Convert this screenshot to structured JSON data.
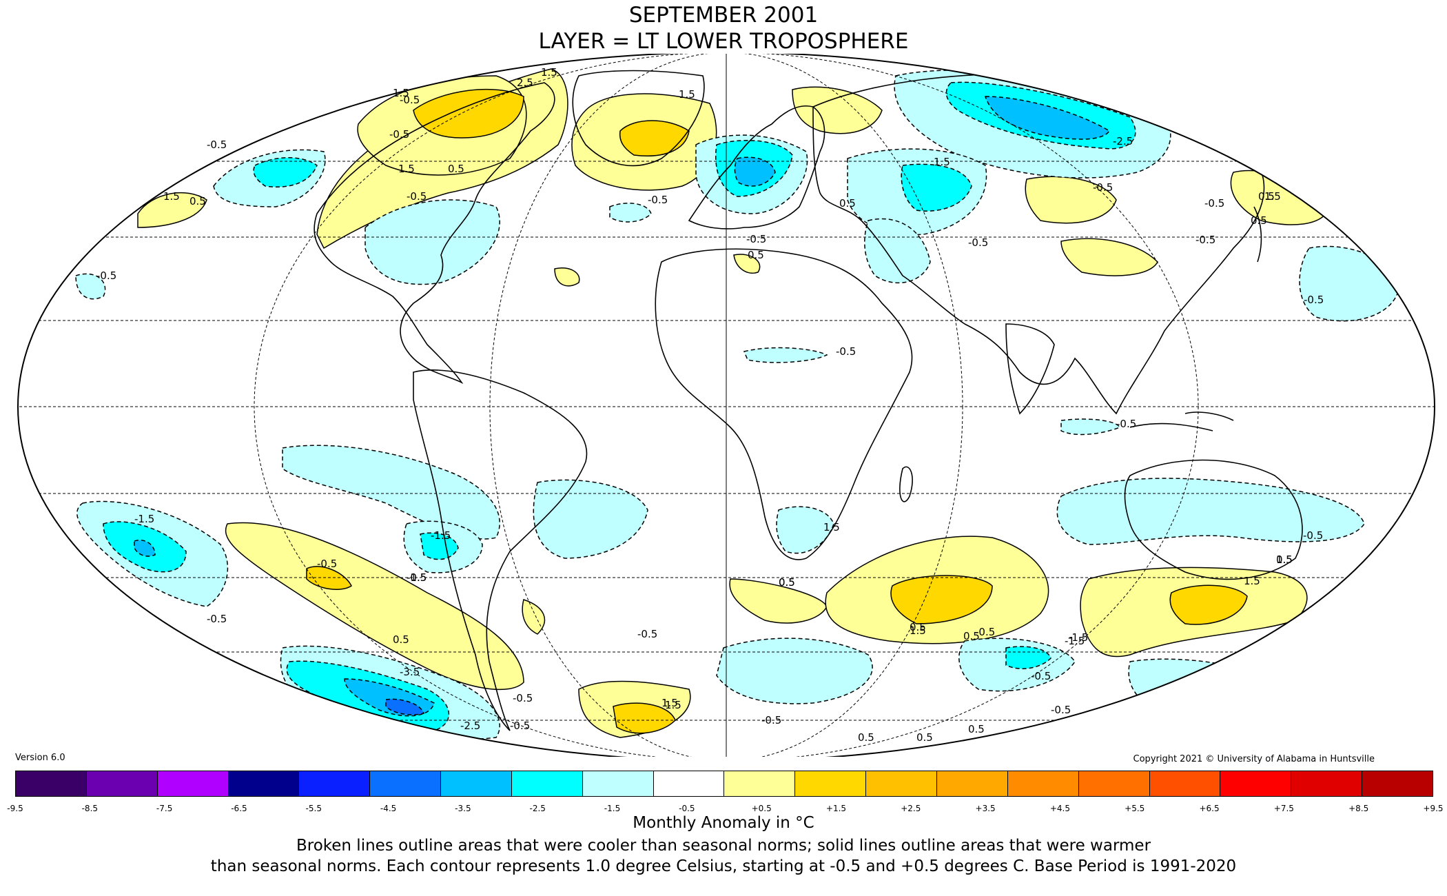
{
  "header": {
    "title_line1": "SEPTEMBER 2001",
    "title_line2": "LAYER = LT LOWER TROPOSPHERE"
  },
  "version": "Version 6.0",
  "copyright": "Copyright 2021 © University of Alabama in Huntsville",
  "colorbar": {
    "label": "Monthly Anomaly in °C",
    "ticks": [
      "-9.5",
      "-8.5",
      "-7.5",
      "-6.5",
      "-5.5",
      "-4.5",
      "-3.5",
      "-2.5",
      "-1.5",
      "-0.5",
      "+0.5",
      "+1.5",
      "+2.5",
      "+3.5",
      "+4.5",
      "+5.5",
      "+6.5",
      "+7.5",
      "+8.5",
      "+9.5"
    ],
    "colors": [
      "#3a0068",
      "#6a00b0",
      "#b000ff",
      "#00008c",
      "#0a20ff",
      "#0a70ff",
      "#00c0ff",
      "#00ffff",
      "#c0ffff",
      "#ffffff",
      "#ffff98",
      "#ffd800",
      "#ffc000",
      "#ffa800",
      "#ff8c00",
      "#ff7000",
      "#ff5000",
      "#ff0000",
      "#e00000",
      "#b80000"
    ]
  },
  "notes": {
    "line1": "Broken lines outline areas that were cooler than seasonal norms; solid lines outline areas that were warmer",
    "line2": "than seasonal norms. Each contour represents 1.0 degree Celsius, starting at -0.5 and +0.5 degrees C. Base Period is 1991-2020"
  },
  "map": {
    "projection": "mollweide",
    "contour_labels": [
      "1.5",
      "2.5",
      "1.5",
      "1.5",
      "-0.5",
      "-0.5",
      "-0.5",
      "1.5",
      "0.5",
      "1.5",
      "0.5",
      "-0.5",
      "-0.5",
      "-0.5",
      "-0.5",
      "-2.5",
      "1.5",
      "-0.5",
      "0.5",
      "-0.5",
      "1.5",
      "0.5",
      "-0.5",
      "0.5",
      "-0.5",
      "-0.5",
      "-0.5",
      "-0.5",
      "-1.5",
      "-1.5",
      "1.5",
      "-0.5",
      "-0.5",
      "0.5",
      "-0.5",
      "-3.5",
      "-2.5",
      "-0.5",
      "1.5",
      "-1.5",
      "1.5",
      "0.5",
      "-0.5",
      "0.5",
      "-0.5",
      "1.5",
      "1.5",
      "0.5",
      "-1.5",
      "-0.5",
      "-0.5",
      "0.5",
      "0.5",
      "-0.5",
      "0.5",
      "-0.5",
      "-1.5",
      "0.5",
      "0.5",
      "1.5",
      "-0.5",
      "0.5"
    ]
  }
}
